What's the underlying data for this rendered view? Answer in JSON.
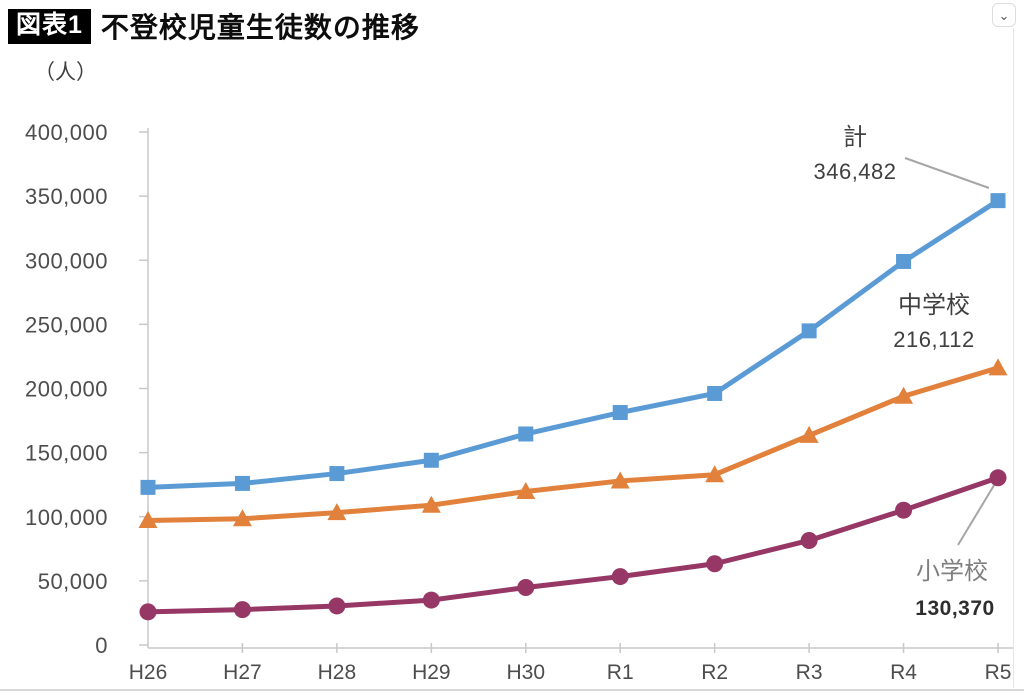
{
  "window": {
    "collapse_icon": "⌄"
  },
  "header": {
    "badge": "図表1",
    "title": "不登校児童生徒数の推移"
  },
  "chart_data": {
    "type": "line",
    "title": "不登校児童生徒数の推移",
    "unit_label": "（人）",
    "xlabel": "",
    "ylabel": "（人）",
    "ylim": [
      0,
      400000
    ],
    "grid": false,
    "legend_position": "end-of-line annotations",
    "categories": [
      "H26",
      "H27",
      "H28",
      "H29",
      "H30",
      "R1",
      "R2",
      "R3",
      "R4",
      "R5"
    ],
    "y_ticks": [
      {
        "value": 0,
        "label": "0"
      },
      {
        "value": 50000,
        "label": "50,000"
      },
      {
        "value": 100000,
        "label": "100,000"
      },
      {
        "value": 150000,
        "label": "150,000"
      },
      {
        "value": 200000,
        "label": "200,000"
      },
      {
        "value": 250000,
        "label": "250,000"
      },
      {
        "value": 300000,
        "label": "300,000"
      },
      {
        "value": 350000,
        "label": "350,000"
      },
      {
        "value": 400000,
        "label": "400,000"
      }
    ],
    "series": [
      {
        "name": "計",
        "marker": "square",
        "color": "#5B9BD5",
        "values": [
          122897,
          125991,
          133683,
          144031,
          164528,
          181272,
          196127,
          244940,
          299048,
          346482
        ]
      },
      {
        "name": "中学校",
        "marker": "triangle",
        "color": "#E2813C",
        "values": [
          97033,
          98408,
          103235,
          108999,
          119687,
          127922,
          132777,
          163442,
          193936,
          216112
        ]
      },
      {
        "name": "小学校",
        "marker": "circle",
        "color": "#963766",
        "values": [
          25864,
          27583,
          30448,
          35032,
          44841,
          53350,
          63350,
          81498,
          105112,
          130370
        ]
      }
    ],
    "annotations": [
      {
        "series": "計",
        "label": "計",
        "value": "346,482"
      },
      {
        "series": "中学校",
        "label": "中学校",
        "value": "216,112"
      },
      {
        "series": "小学校",
        "label": "小学校",
        "value": "130,370"
      }
    ],
    "colors": {
      "total": "#5B9BD5",
      "junior_high": "#E2813C",
      "elementary": "#963766",
      "axis": "#c9c9c9",
      "leader": "#a6a6a6"
    }
  }
}
